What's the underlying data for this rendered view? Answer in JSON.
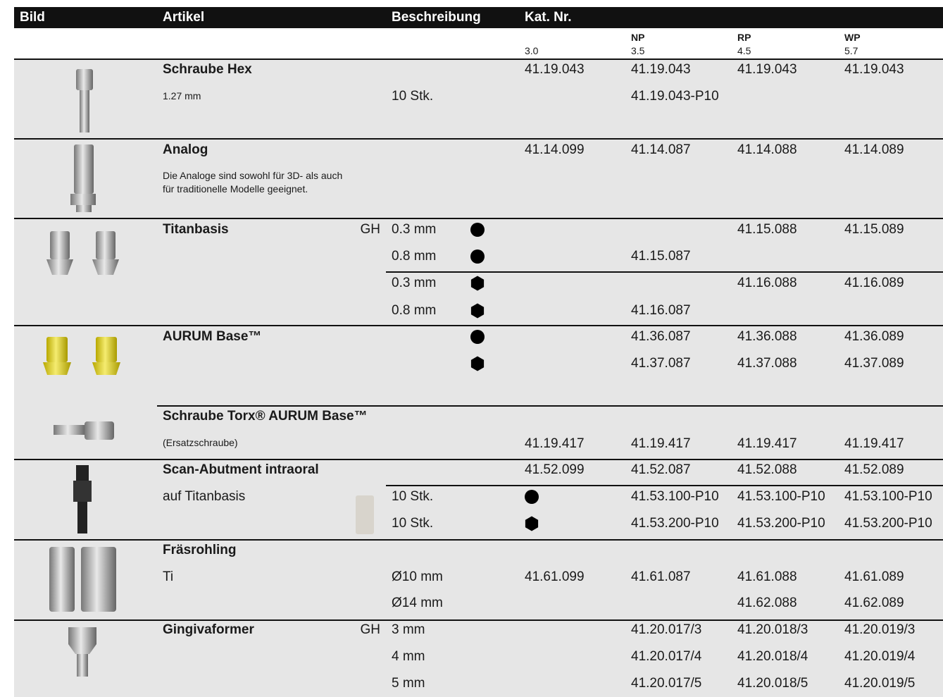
{
  "header": {
    "image": "Bild",
    "article": "Artikel",
    "description": "Beschreibung",
    "catalog": "Kat. Nr."
  },
  "sizes": [
    {
      "value": "3.0"
    },
    {
      "name": "NP",
      "value": "3.5"
    },
    {
      "name": "RP",
      "value": "4.5"
    },
    {
      "name": "WP",
      "value": "5.7"
    }
  ],
  "groups": [
    {
      "article": "Schraube Hex",
      "notes": [
        "1.27 mm"
      ],
      "rows": [
        {
          "codes": {
            "c30": "41.19.043",
            "np": "41.19.043",
            "rp": "41.19.043",
            "wp": "41.19.043"
          }
        },
        {
          "description": "10 Stk.",
          "codes": {
            "np": "41.19.043-P10"
          }
        }
      ]
    },
    {
      "article": "Analog",
      "notes": [
        "Die Analoge sind sowohl für 3D- als auch",
        "für traditionelle Modelle geeignet."
      ],
      "rows": [
        {
          "codes": {
            "c30": "41.14.099",
            "np": "41.14.087",
            "rp": "41.14.088",
            "wp": "41.14.089"
          }
        }
      ]
    },
    {
      "article": "Titanbasis",
      "rows": [
        {
          "gh": "GH",
          "description": "0.3 mm",
          "codes": {
            "rp": "41.15.088",
            "wp": "41.15.089"
          }
        },
        {
          "description": "0.8 mm",
          "codes": {
            "np": "41.15.087"
          }
        },
        {
          "description": "0.3 mm",
          "codes": {
            "rp": "41.16.088",
            "wp": "41.16.089"
          }
        },
        {
          "description": "0.8 mm",
          "codes": {
            "np": "41.16.087"
          }
        }
      ]
    },
    {
      "article": "AURUM Base™",
      "rows": [
        {
          "codes": {
            "np": "41.36.087",
            "rp": "41.36.088",
            "wp": "41.36.089"
          }
        },
        {
          "codes": {
            "np": "41.37.087",
            "rp": "41.37.088",
            "wp": "41.37.089"
          }
        }
      ]
    },
    {
      "article": "Schraube Torx® AURUM Base™",
      "notes": [
        "(Ersatzschraube)"
      ],
      "rows": [
        {
          "codes": {
            "c30": "41.19.417",
            "np": "41.19.417",
            "rp": "41.19.417",
            "wp": "41.19.417"
          }
        }
      ]
    },
    {
      "article": "Scan-Abutment intraoral",
      "notes": [
        "auf Titanbasis"
      ],
      "rows": [
        {
          "codes": {
            "c30": "41.52.099",
            "np": "41.52.087",
            "rp": "41.52.088",
            "wp": "41.52.089"
          }
        },
        {
          "description": "10 Stk.",
          "codes": {
            "np": "41.53.100-P10",
            "rp": "41.53.100-P10",
            "wp": "41.53.100-P10"
          }
        },
        {
          "description": "10 Stk.",
          "codes": {
            "np": "41.53.200-P10",
            "rp": "41.53.200-P10",
            "wp": "41.53.200-P10"
          }
        }
      ]
    },
    {
      "article": "Fräsrohling",
      "notes": [
        "Ti"
      ],
      "rows": [
        {
          "description": "Ø10 mm",
          "codes": {
            "c30": "41.61.099",
            "np": "41.61.087",
            "rp": "41.61.088",
            "wp": "41.61.089"
          }
        },
        {
          "description": "Ø14 mm",
          "codes": {
            "rp": "41.62.088",
            "wp": "41.62.089"
          }
        }
      ]
    },
    {
      "article": "Gingivaformer",
      "rows": [
        {
          "gh": "GH",
          "description": "3 mm",
          "codes": {
            "np": "41.20.017/3",
            "rp": "41.20.018/3",
            "wp": "41.20.019/3"
          }
        },
        {
          "description": "4 mm",
          "codes": {
            "np": "41.20.017/4",
            "rp": "41.20.018/4",
            "wp": "41.20.019/4"
          }
        },
        {
          "description": "5 mm",
          "codes": {
            "np": "41.20.017/5",
            "rp": "41.20.018/5",
            "wp": "41.20.019/5"
          }
        }
      ]
    }
  ]
}
